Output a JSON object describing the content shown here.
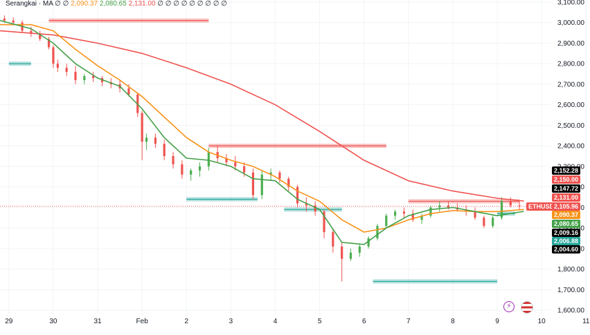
{
  "legend": {
    "name": "Serangkai · MA",
    "placeholders": "∅ ∅",
    "v1": "2,090.37",
    "v2": "2,080.65",
    "v3": "2,131.00",
    "tail": "∅ ∅ ∅ ∅ ∅ ∅ ∅ ∅ ∅"
  },
  "symbol": "ETHUSD",
  "colors": {
    "up": "#26a69a",
    "down": "#ef5350",
    "candle": "#4caf50",
    "ma_fast": "#43a047",
    "ma_mid": "#f7931a",
    "ma_slow": "#ef5350",
    "price_line": "#ef5350"
  },
  "icons": [
    "lightning-icon",
    "us-flag-icon"
  ],
  "price_tags": [
    {
      "label": "2,152.28",
      "bg": "#000000"
    },
    {
      "label": "2,150.00",
      "bg": "#ef5350"
    },
    {
      "label": "2,147.72",
      "bg": "#000000"
    },
    {
      "label": "2,131.00",
      "bg": "#ef5350"
    },
    {
      "label": "2,105.96",
      "bg": "#ef5350"
    },
    {
      "label": "2,090.37",
      "bg": "#f7931a"
    },
    {
      "label": "2,080.65",
      "bg": "#43a047"
    },
    {
      "label": "2,009.16",
      "bg": "#000000"
    },
    {
      "label": "2,006.88",
      "bg": "#26a69a"
    },
    {
      "label": "2,004.60",
      "bg": "#000000"
    }
  ],
  "chart_data": {
    "type": "candlestick",
    "x_ticks": [
      "29",
      "30",
      "31",
      "Feb",
      "2",
      "3",
      "4",
      "5",
      "6",
      "7",
      "8",
      "9",
      "10",
      "11"
    ],
    "y_ticks": [
      "3,100.00",
      "3,000.00",
      "2,900.00",
      "2,800.00",
      "2,700.00",
      "2,600.00",
      "2,500.00",
      "2,400.00",
      "2,300.00",
      "2,200.00",
      "2,100.00",
      "2,000.00",
      "1,900.00",
      "1,800.00",
      "1,700.00",
      "1,600.00"
    ],
    "ylim": [
      1580,
      3110
    ],
    "xlim": [
      28.8,
      41.2
    ],
    "last_price": 2105.96,
    "candles": [
      [
        28.9,
        3020,
        3035,
        3000,
        3010
      ],
      [
        29.1,
        3010,
        3025,
        2990,
        3000
      ],
      [
        29.3,
        3000,
        3010,
        2950,
        2960
      ],
      [
        29.5,
        2960,
        2980,
        2930,
        2945
      ],
      [
        29.7,
        2945,
        2960,
        2910,
        2920
      ],
      [
        29.9,
        2920,
        2930,
        2870,
        2880
      ],
      [
        30.0,
        2880,
        2890,
        2780,
        2800
      ],
      [
        30.1,
        2800,
        2820,
        2760,
        2780
      ],
      [
        30.3,
        2780,
        2800,
        2740,
        2760
      ],
      [
        30.5,
        2760,
        2790,
        2700,
        2720
      ],
      [
        30.7,
        2720,
        2750,
        2700,
        2740
      ],
      [
        30.9,
        2740,
        2760,
        2710,
        2730
      ],
      [
        31.1,
        2730,
        2740,
        2690,
        2710
      ],
      [
        31.3,
        2710,
        2730,
        2680,
        2700
      ],
      [
        31.5,
        2700,
        2720,
        2660,
        2680
      ],
      [
        31.7,
        2680,
        2700,
        2640,
        2650
      ],
      [
        31.9,
        2650,
        2660,
        2540,
        2560
      ],
      [
        32.0,
        2560,
        2570,
        2330,
        2420
      ],
      [
        32.1,
        2420,
        2460,
        2380,
        2440
      ],
      [
        32.3,
        2440,
        2460,
        2390,
        2410
      ],
      [
        32.5,
        2410,
        2430,
        2330,
        2350
      ],
      [
        32.7,
        2350,
        2370,
        2290,
        2310
      ],
      [
        32.9,
        2310,
        2330,
        2240,
        2260
      ],
      [
        33.1,
        2260,
        2290,
        2230,
        2280
      ],
      [
        33.3,
        2280,
        2320,
        2250,
        2300
      ],
      [
        33.5,
        2300,
        2390,
        2280,
        2370
      ],
      [
        33.7,
        2370,
        2400,
        2320,
        2340
      ],
      [
        33.9,
        2340,
        2360,
        2300,
        2320
      ],
      [
        34.1,
        2320,
        2350,
        2280,
        2300
      ],
      [
        34.3,
        2300,
        2320,
        2250,
        2270
      ],
      [
        34.5,
        2270,
        2290,
        2140,
        2160
      ],
      [
        34.7,
        2160,
        2280,
        2140,
        2260
      ],
      [
        34.9,
        2260,
        2290,
        2230,
        2270
      ],
      [
        35.1,
        2270,
        2280,
        2220,
        2240
      ],
      [
        35.3,
        2240,
        2250,
        2180,
        2200
      ],
      [
        35.5,
        2200,
        2210,
        2100,
        2120
      ],
      [
        35.7,
        2120,
        2150,
        2080,
        2110
      ],
      [
        35.9,
        2110,
        2130,
        2060,
        2080
      ],
      [
        36.1,
        2080,
        2090,
        1950,
        1980
      ],
      [
        36.3,
        1980,
        2000,
        1880,
        1910
      ],
      [
        36.5,
        1910,
        1930,
        1740,
        1850
      ],
      [
        36.7,
        1850,
        1900,
        1840,
        1880
      ],
      [
        36.9,
        1880,
        1920,
        1860,
        1910
      ],
      [
        37.1,
        1910,
        1960,
        1900,
        1950
      ],
      [
        37.3,
        1950,
        2020,
        1940,
        2010
      ],
      [
        37.5,
        2010,
        2070,
        2000,
        2060
      ],
      [
        37.7,
        2060,
        2090,
        2040,
        2080
      ],
      [
        37.9,
        2080,
        2100,
        2050,
        2070
      ],
      [
        38.1,
        2070,
        2090,
        2030,
        2040
      ],
      [
        38.3,
        2040,
        2070,
        2020,
        2060
      ],
      [
        38.5,
        2060,
        2110,
        2050,
        2100
      ],
      [
        38.7,
        2100,
        2130,
        2080,
        2110
      ],
      [
        38.9,
        2110,
        2130,
        2090,
        2100
      ],
      [
        39.1,
        2100,
        2120,
        2080,
        2090
      ],
      [
        39.3,
        2090,
        2110,
        2060,
        2080
      ],
      [
        39.5,
        2080,
        2100,
        2040,
        2050
      ],
      [
        39.7,
        2050,
        2060,
        2000,
        2010
      ],
      [
        39.9,
        2010,
        2060,
        2000,
        2050
      ],
      [
        40.1,
        2050,
        2150,
        2040,
        2130
      ],
      [
        40.3,
        2130,
        2150,
        2100,
        2110
      ],
      [
        40.5,
        2110,
        2130,
        2090,
        2106
      ]
    ],
    "ma_slow": [
      [
        28.8,
        2960
      ],
      [
        30,
        2940
      ],
      [
        31,
        2900
      ],
      [
        32,
        2850
      ],
      [
        33,
        2780
      ],
      [
        34,
        2700
      ],
      [
        35,
        2600
      ],
      [
        36,
        2470
      ],
      [
        37,
        2330
      ],
      [
        38,
        2230
      ],
      [
        39,
        2180
      ],
      [
        40,
        2145
      ],
      [
        40.6,
        2131
      ]
    ],
    "ma_mid": [
      [
        28.8,
        2990
      ],
      [
        29.5,
        2990
      ],
      [
        30,
        2960
      ],
      [
        30.5,
        2870
      ],
      [
        31,
        2790
      ],
      [
        31.5,
        2720
      ],
      [
        32,
        2640
      ],
      [
        32.5,
        2540
      ],
      [
        33,
        2440
      ],
      [
        33.5,
        2370
      ],
      [
        34,
        2330
      ],
      [
        34.5,
        2300
      ],
      [
        35,
        2250
      ],
      [
        35.5,
        2180
      ],
      [
        36,
        2130
      ],
      [
        36.5,
        2040
      ],
      [
        37,
        1980
      ],
      [
        37.5,
        2000
      ],
      [
        38,
        2040
      ],
      [
        38.5,
        2070
      ],
      [
        39,
        2085
      ],
      [
        39.5,
        2080
      ],
      [
        40,
        2080
      ],
      [
        40.6,
        2090
      ]
    ],
    "ma_fast": [
      [
        28.8,
        3010
      ],
      [
        29.5,
        2970
      ],
      [
        30,
        2900
      ],
      [
        30.5,
        2800
      ],
      [
        31,
        2730
      ],
      [
        31.5,
        2690
      ],
      [
        32,
        2580
      ],
      [
        32.5,
        2440
      ],
      [
        33,
        2340
      ],
      [
        33.5,
        2330
      ],
      [
        34,
        2300
      ],
      [
        34.5,
        2240
      ],
      [
        35,
        2230
      ],
      [
        35.5,
        2140
      ],
      [
        36,
        2090
      ],
      [
        36.5,
        1930
      ],
      [
        37,
        1920
      ],
      [
        37.5,
        2000
      ],
      [
        38,
        2060
      ],
      [
        38.5,
        2090
      ],
      [
        39,
        2100
      ],
      [
        39.5,
        2080
      ],
      [
        40,
        2060
      ],
      [
        40.6,
        2081
      ]
    ]
  }
}
